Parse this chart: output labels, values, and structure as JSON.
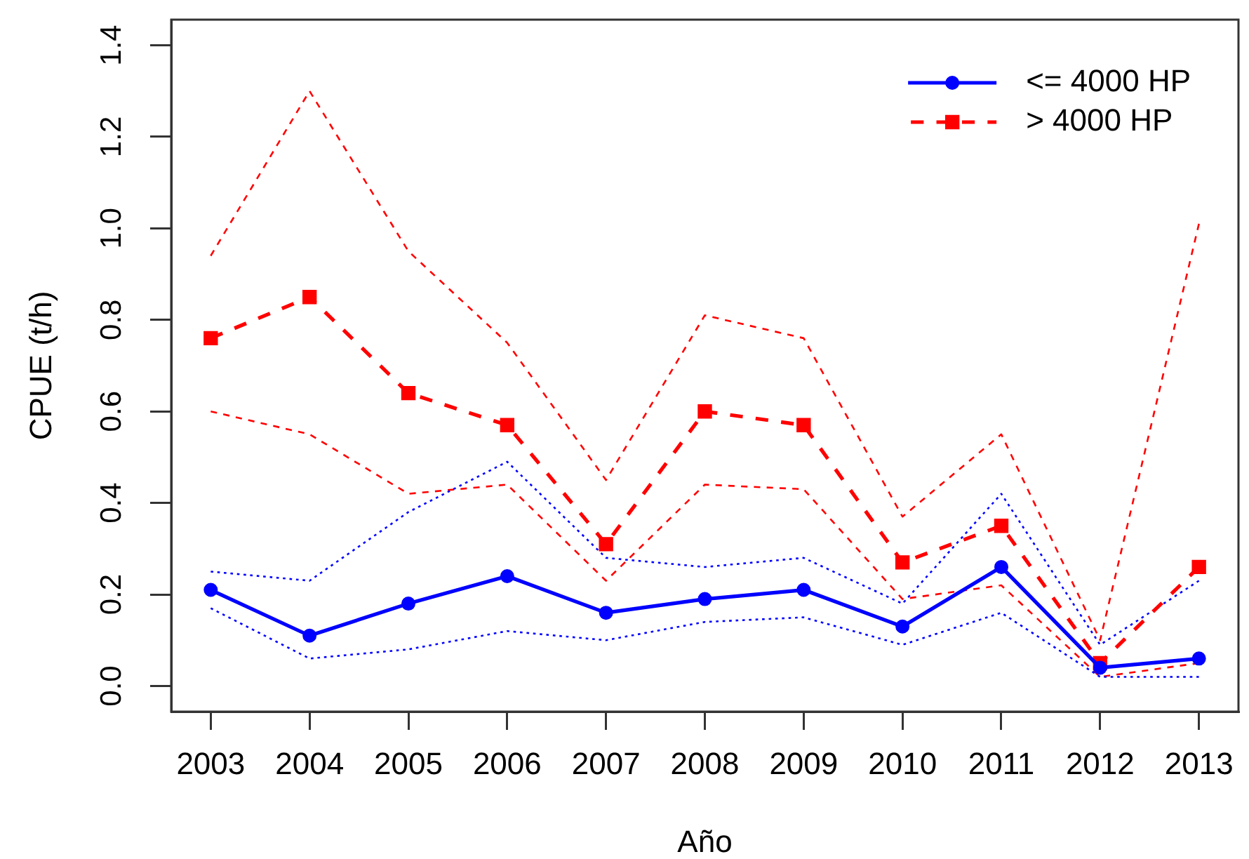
{
  "chart_data": {
    "type": "line",
    "xlabel": "Año",
    "ylabel": "CPUE (t/h)",
    "legend": "top right",
    "x": [
      2003,
      2004,
      2005,
      2006,
      2007,
      2008,
      2009,
      2010,
      2011,
      2012,
      2013
    ],
    "xlim": [
      2002.6,
      2013.4
    ],
    "xticks": [
      2003,
      2004,
      2005,
      2006,
      2007,
      2008,
      2009,
      2010,
      2011,
      2012,
      2013
    ],
    "ylim": [
      -0.056,
      1.456
    ],
    "yticks": [
      {
        "value": 0,
        "label": "0.0"
      },
      0.2,
      0.4,
      0.6,
      0.8,
      {
        "value": 1,
        "label": "1.0"
      },
      1.2,
      1.4
    ],
    "series": [
      {
        "name": "<= 4000 HP",
        "color": "#0000ff",
        "marker": "circle",
        "line_style": "solid",
        "values": [
          0.21,
          0.11,
          0.18,
          0.24,
          0.16,
          0.19,
          0.21,
          0.13,
          0.26,
          0.04,
          0.06
        ]
      },
      {
        "name": "> 4000 HP",
        "color": "#ff0000",
        "marker": "square",
        "line_style": "dashed",
        "values": [
          0.76,
          0.85,
          0.64,
          0.57,
          0.31,
          0.6,
          0.57,
          0.27,
          0.35,
          0.05,
          0.26
        ]
      },
      {
        "color": "#0000ff",
        "marker": "none",
        "line_style": "dotted",
        "values": [
          0.25,
          0.23,
          0.38,
          0.49,
          0.28,
          0.26,
          0.28,
          0.18,
          0.42,
          0.09,
          0.23
        ]
      },
      {
        "color": "#0000ff",
        "marker": "none",
        "line_style": "dotted",
        "values": [
          0.17,
          0.06,
          0.08,
          0.12,
          0.1,
          0.14,
          0.15,
          0.09,
          0.16,
          0.02,
          0.02
        ]
      },
      {
        "color": "#ff0000",
        "marker": "none",
        "line_style": "dashed",
        "values": [
          0.94,
          1.3,
          0.95,
          0.75,
          0.45,
          0.81,
          0.76,
          0.37,
          0.55,
          0.1,
          1.01
        ]
      },
      {
        "color": "#ff0000",
        "marker": "none",
        "line_style": "dashed",
        "values": [
          0.6,
          0.55,
          0.42,
          0.44,
          0.23,
          0.44,
          0.43,
          0.19,
          0.22,
          0.02,
          0.05
        ]
      }
    ]
  }
}
